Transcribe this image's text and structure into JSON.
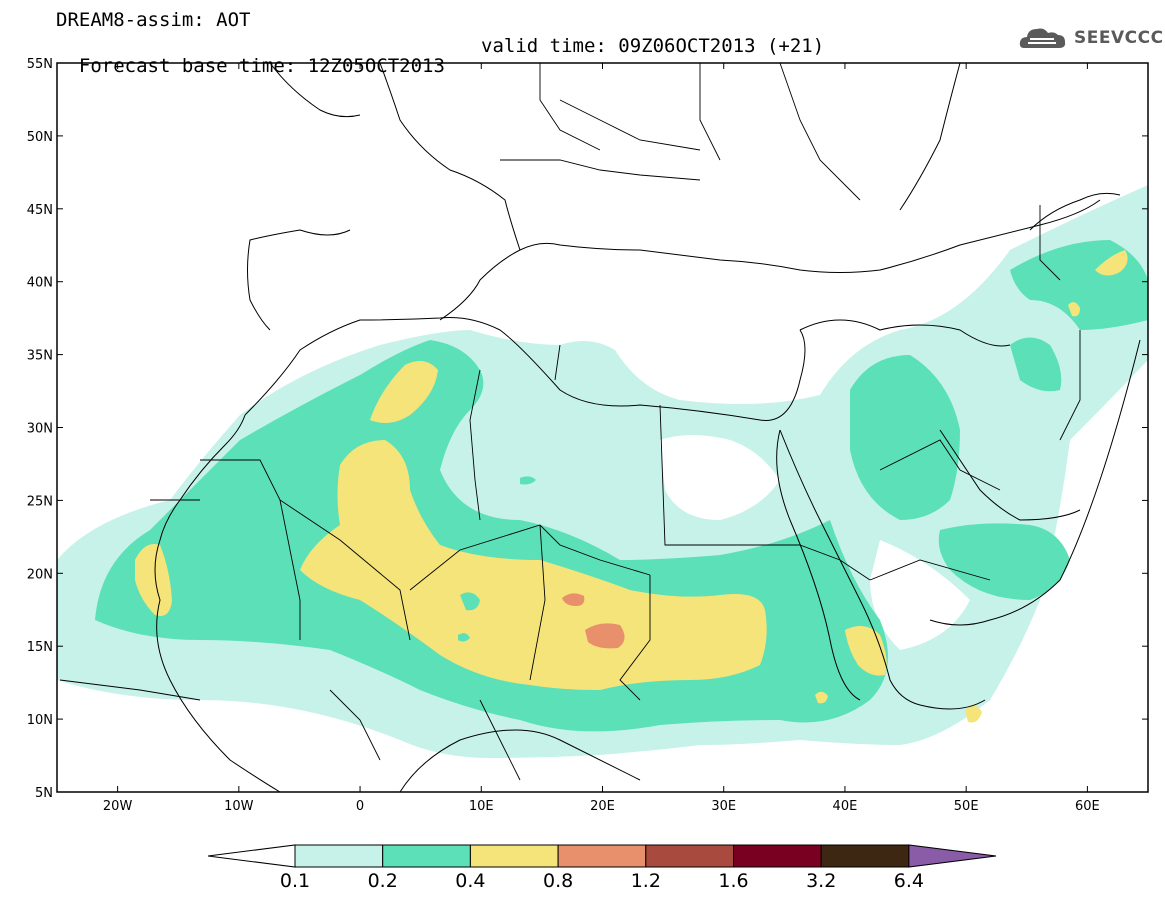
{
  "title": {
    "line1": "DREAM8-assim: AOT",
    "line2_base": "Forecast base time: 12Z05OCT2013",
    "line2_valid": "valid time: 09Z06OCT2013 (+21)"
  },
  "logo": {
    "text": "SEEVCCC",
    "icon": "cloud-icon"
  },
  "map": {
    "lat_labels": [
      "55N",
      "50N",
      "45N",
      "40N",
      "35N",
      "30N",
      "25N",
      "20N",
      "15N",
      "10N",
      "5N"
    ],
    "lat_values": [
      55,
      50,
      45,
      40,
      35,
      30,
      25,
      20,
      15,
      10,
      5
    ],
    "lon_labels": [
      "20W",
      "10W",
      "0",
      "10E",
      "20E",
      "30E",
      "40E",
      "50E",
      "60E"
    ],
    "lon_values": [
      -20,
      -10,
      0,
      10,
      20,
      30,
      40,
      50,
      60
    ],
    "lon_range": [
      -25,
      65
    ],
    "lat_range": [
      5,
      55
    ]
  },
  "colorbar": {
    "labels": [
      "0.1",
      "0.2",
      "0.4",
      "0.8",
      "1.2",
      "1.6",
      "3.2",
      "6.4"
    ],
    "colors": [
      "#c6f2ea",
      "#5ce0b8",
      "#f5e47a",
      "#e8906c",
      "#a84a3e",
      "#7a0022",
      "#3d2612",
      "#8a5ca8"
    ]
  }
}
